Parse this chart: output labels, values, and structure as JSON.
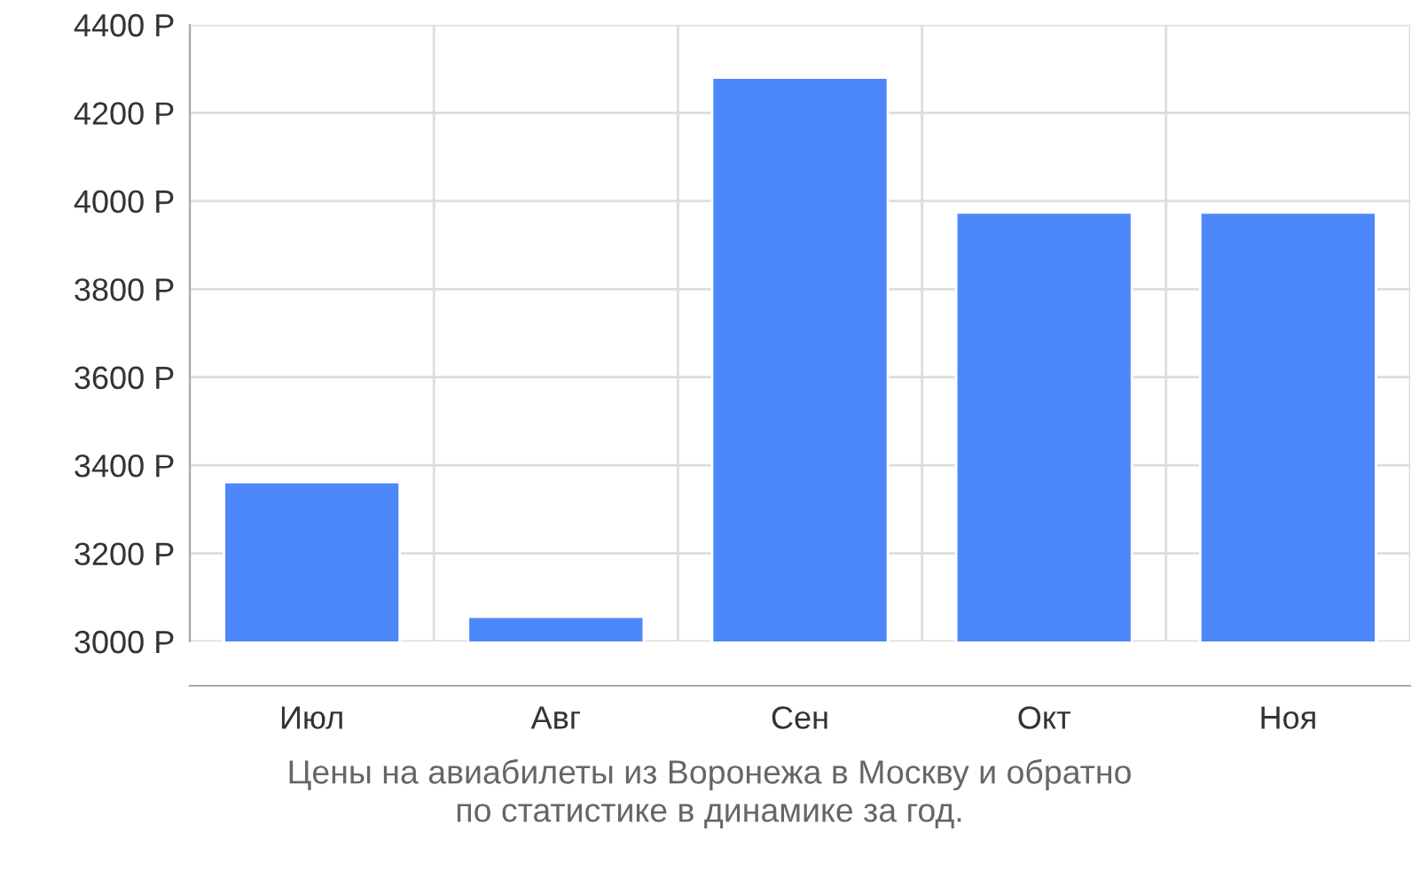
{
  "chart_data": {
    "type": "bar",
    "categories": [
      "Июл",
      "Авг",
      "Сен",
      "Окт",
      "Ноя"
    ],
    "values": [
      3362,
      3056,
      4280,
      3974,
      3974
    ],
    "color": "#4d88fb",
    "ylim": [
      3000,
      4400
    ],
    "yticks": [
      {
        "value": 3000,
        "label": "3000 Р"
      },
      {
        "value": 3200,
        "label": "3200 Р"
      },
      {
        "value": 3400,
        "label": "3400 Р"
      },
      {
        "value": 3600,
        "label": "3600 Р"
      },
      {
        "value": 3800,
        "label": "3800 Р"
      },
      {
        "value": 4000,
        "label": "4000 Р"
      },
      {
        "value": 4200,
        "label": "4200 Р"
      },
      {
        "value": 4400,
        "label": "4400 Р"
      }
    ],
    "grid": true,
    "annotations": [
      "Цены на авиабилеты из Воронежа в Москву и обратно\nпо статистике в динамике за год."
    ]
  }
}
